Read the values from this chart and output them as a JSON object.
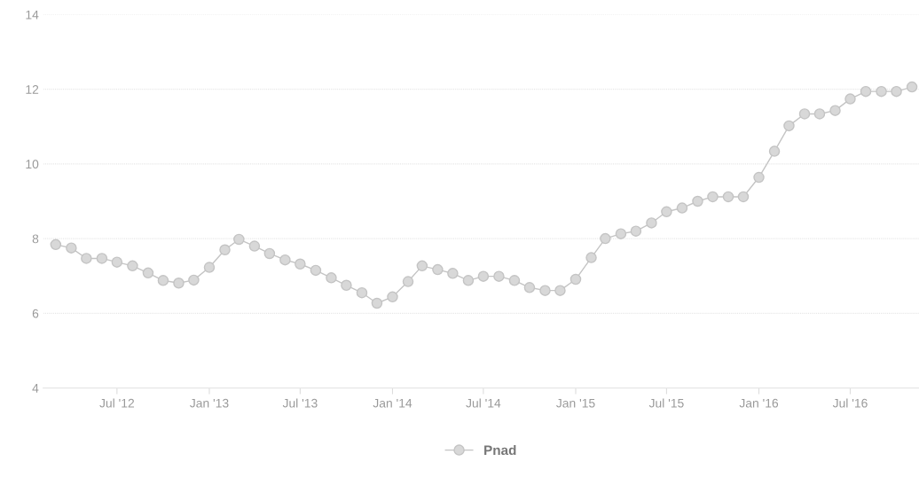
{
  "chart_data": {
    "type": "line",
    "x": [
      "2012-03",
      "2012-04",
      "2012-05",
      "2012-06",
      "2012-07",
      "2012-08",
      "2012-09",
      "2012-10",
      "2012-11",
      "2012-12",
      "2013-01",
      "2013-02",
      "2013-03",
      "2013-04",
      "2013-05",
      "2013-06",
      "2013-07",
      "2013-08",
      "2013-09",
      "2013-10",
      "2013-11",
      "2013-12",
      "2014-01",
      "2014-02",
      "2014-03",
      "2014-04",
      "2014-05",
      "2014-06",
      "2014-07",
      "2014-08",
      "2014-09",
      "2014-10",
      "2014-11",
      "2014-12",
      "2015-01",
      "2015-02",
      "2015-03",
      "2015-04",
      "2015-05",
      "2015-06",
      "2015-07",
      "2015-08",
      "2015-09",
      "2015-10",
      "2015-11",
      "2015-12",
      "2016-01",
      "2016-02",
      "2016-03",
      "2016-04",
      "2016-05",
      "2016-06",
      "2016-07",
      "2016-08",
      "2016-09",
      "2016-10",
      "2016-11"
    ],
    "series": [
      {
        "name": "Pnad",
        "color": "#c4c4c4",
        "values": [
          7.84,
          7.75,
          7.47,
          7.47,
          7.37,
          7.27,
          7.08,
          6.88,
          6.81,
          6.89,
          7.23,
          7.7,
          7.98,
          7.8,
          7.6,
          7.43,
          7.32,
          7.15,
          6.95,
          6.75,
          6.55,
          6.27,
          6.44,
          6.85,
          7.27,
          7.17,
          7.07,
          6.88,
          6.99,
          6.99,
          6.88,
          6.69,
          6.61,
          6.61,
          6.91,
          7.49,
          8.0,
          8.13,
          8.2,
          8.42,
          8.72,
          8.82,
          9.0,
          9.12,
          9.12,
          9.12,
          9.64,
          10.34,
          11.02,
          11.34,
          11.34,
          11.43,
          11.74,
          11.94,
          11.94,
          11.94,
          12.06
        ]
      }
    ],
    "xlim": [
      "2012-02-05",
      "2016-11-15"
    ],
    "xticks": [
      {
        "value": "2012-07-01",
        "label": "Jul '12"
      },
      {
        "value": "2013-01-01",
        "label": "Jan '13"
      },
      {
        "value": "2013-07-01",
        "label": "Jul '13"
      },
      {
        "value": "2014-01-01",
        "label": "Jan '14"
      },
      {
        "value": "2014-07-01",
        "label": "Jul '14"
      },
      {
        "value": "2015-01-01",
        "label": "Jan '15"
      },
      {
        "value": "2015-07-01",
        "label": "Jul '15"
      },
      {
        "value": "2016-01-01",
        "label": "Jan '16"
      },
      {
        "value": "2016-07-01",
        "label": "Jul '16"
      }
    ],
    "ylim": [
      4,
      14
    ],
    "yticks": [
      4,
      6,
      8,
      10,
      12,
      14
    ],
    "grid": "y",
    "legend": "bottom",
    "marker": "circle",
    "line_style": "solid"
  }
}
